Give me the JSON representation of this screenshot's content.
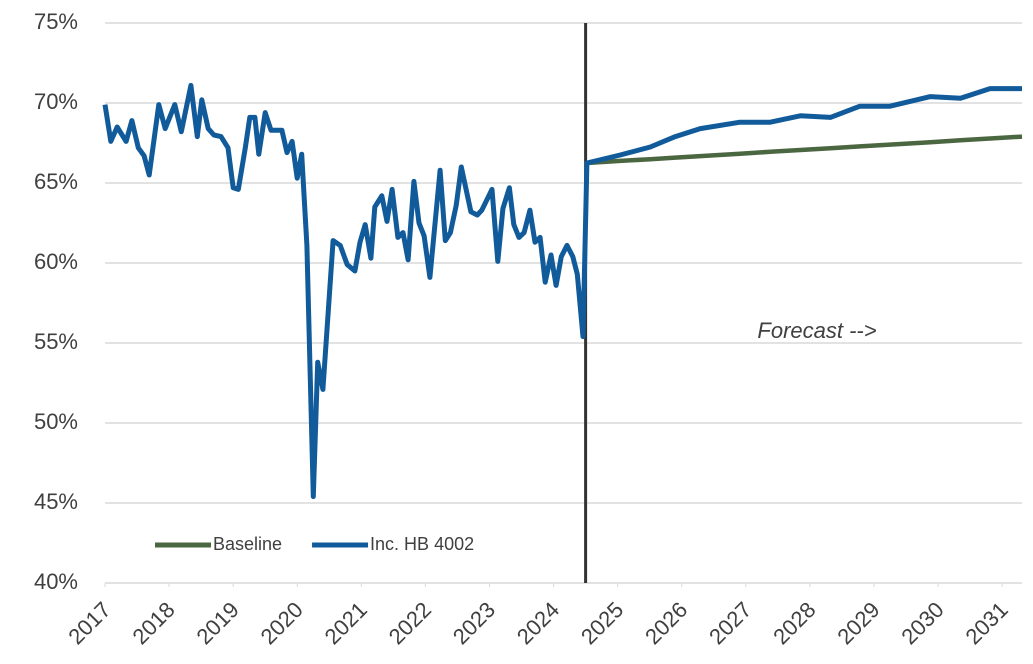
{
  "chart_data": {
    "type": "line",
    "x": [
      2017.0,
      2017.09,
      2017.19,
      2017.33,
      2017.42,
      2017.52,
      2017.61,
      2017.69,
      2017.84,
      2017.94,
      2018.09,
      2018.19,
      2018.34,
      2018.44,
      2018.51,
      2018.61,
      2018.7,
      2018.81,
      2018.92,
      2019.0,
      2019.08,
      2019.19,
      2019.26,
      2019.34,
      2019.4,
      2019.5,
      2019.59,
      2019.76,
      2019.84,
      2019.92,
      2020.0,
      2020.07,
      2020.15,
      2020.25,
      2020.32,
      2020.4,
      2020.56,
      2020.67,
      2020.78,
      2020.9,
      2020.98,
      2021.06,
      2021.15,
      2021.21,
      2021.32,
      2021.4,
      2021.48,
      2021.57,
      2021.65,
      2021.73,
      2021.82,
      2021.9,
      2021.98,
      2022.07,
      2022.23,
      2022.31,
      2022.39,
      2022.48,
      2022.56,
      2022.71,
      2022.81,
      2022.88,
      2023.04,
      2023.13,
      2023.21,
      2023.31,
      2023.38,
      2023.46,
      2023.54,
      2023.63,
      2023.71,
      2023.79,
      2023.87,
      2023.96,
      2024.04,
      2024.12,
      2024.21,
      2024.3,
      2024.37,
      2024.46,
      2024.52,
      2025.04,
      2025.51,
      2025.9,
      2026.29,
      2026.91,
      2027.38,
      2027.85,
      2028.32,
      2028.78,
      2029.25,
      2029.88,
      2030.35,
      2030.81,
      2031.31
    ],
    "series": [
      {
        "name": "Baseline",
        "color": "#4a6741",
        "values": [
          null,
          null,
          null,
          null,
          null,
          null,
          null,
          null,
          null,
          null,
          null,
          null,
          null,
          null,
          null,
          null,
          null,
          null,
          null,
          null,
          null,
          null,
          null,
          null,
          null,
          null,
          null,
          null,
          null,
          null,
          null,
          null,
          null,
          null,
          null,
          null,
          null,
          null,
          null,
          null,
          null,
          null,
          null,
          null,
          null,
          null,
          null,
          null,
          null,
          null,
          null,
          null,
          null,
          null,
          null,
          null,
          null,
          null,
          null,
          null,
          null,
          null,
          null,
          null,
          null,
          null,
          null,
          null,
          null,
          null,
          null,
          null,
          null,
          null,
          null,
          null,
          null,
          null,
          null,
          null,
          66.25,
          66.38,
          66.49,
          66.59,
          66.68,
          66.83,
          66.95,
          67.06,
          67.17,
          67.29,
          67.4,
          67.55,
          67.67,
          67.78,
          67.9
        ]
      },
      {
        "name": "Inc. HB 4002",
        "color": "#115b9b",
        "values": [
          69.9,
          67.6,
          68.5,
          67.6,
          68.9,
          67.2,
          66.7,
          65.5,
          69.9,
          68.4,
          69.9,
          68.2,
          71.1,
          67.9,
          70.2,
          68.4,
          68.0,
          67.9,
          67.2,
          64.7,
          64.6,
          67.2,
          69.1,
          69.1,
          66.8,
          69.4,
          68.3,
          68.3,
          66.9,
          67.6,
          65.3,
          66.8,
          61.1,
          45.4,
          53.8,
          52.1,
          61.4,
          61.1,
          59.9,
          59.5,
          61.3,
          62.4,
          60.3,
          63.5,
          64.2,
          62.6,
          64.6,
          61.6,
          61.9,
          60.2,
          65.1,
          62.5,
          61.7,
          59.1,
          65.8,
          61.4,
          61.9,
          63.6,
          66.0,
          63.2,
          63.0,
          63.3,
          64.6,
          60.1,
          63.4,
          64.7,
          62.4,
          61.6,
          61.9,
          63.3,
          61.3,
          61.6,
          58.8,
          60.5,
          58.6,
          60.4,
          61.1,
          60.4,
          59.3,
          55.4,
          66.25,
          66.75,
          67.25,
          67.9,
          68.4,
          68.8,
          68.8,
          69.2,
          69.1,
          69.8,
          69.8,
          70.4,
          70.3,
          70.9,
          70.9
        ]
      }
    ],
    "xlim": [
      2017,
      2031.31
    ],
    "xticks": [
      2017,
      2018,
      2019,
      2020,
      2021,
      2022,
      2023,
      2024,
      2025,
      2026,
      2027,
      2028,
      2029,
      2030,
      2031
    ],
    "ylim": [
      40,
      75
    ],
    "yticks": [
      {
        "value": 40,
        "label": "40%"
      },
      {
        "value": 45,
        "label": "45%"
      },
      {
        "value": 50,
        "label": "50%"
      },
      {
        "value": 55,
        "label": "55%"
      },
      {
        "value": 60,
        "label": "60%"
      },
      {
        "value": 65,
        "label": "65%"
      },
      {
        "value": 70,
        "label": "70%"
      },
      {
        "value": 75,
        "label": "75%"
      }
    ],
    "grid": true,
    "legend": "lower left",
    "annotations": [
      {
        "text": "Forecast -->",
        "x": 2024.5
      }
    ]
  }
}
